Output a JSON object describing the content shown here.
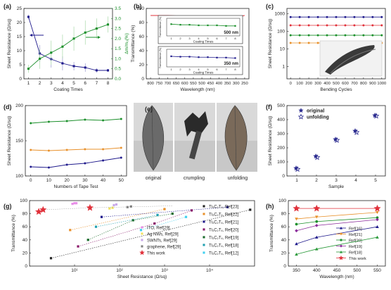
{
  "panels": {
    "a": "(a)",
    "b": "(b)",
    "c": "(c)",
    "d": "(d)",
    "e": "(e)",
    "f": "(f)",
    "g": "(g)",
    "h": "(h)"
  },
  "photo_e": {
    "labels": [
      "original",
      "crumpling",
      "unfolding"
    ]
  },
  "chart_data": [
    {
      "panel": "a",
      "type": "line",
      "xlabel": "Coating Times",
      "ylabel": "Sheet Resistance (Ω/sq)",
      "y2label": "Δm/m₀(%)",
      "x": [
        1,
        2,
        3,
        4,
        5,
        6,
        7,
        8
      ],
      "xticks": [
        "1",
        "2",
        "3",
        "4",
        "5",
        "6",
        "7",
        "8"
      ],
      "yticks": [
        "0",
        "5",
        "10",
        "15",
        "20",
        "25"
      ],
      "y2ticks": [
        "0.0",
        "0.5",
        "1.0",
        "1.5",
        "2.0",
        "2.5",
        "3.0",
        "3.5"
      ],
      "ylim": [
        0,
        25
      ],
      "y2lim": [
        0,
        3.5
      ],
      "series": [
        {
          "axis": "left",
          "color": "#1f1a8c",
          "marker": "square",
          "values": [
            22,
            9,
            7,
            5.5,
            4.5,
            4,
            3,
            3
          ],
          "errors": [
            0.8,
            3,
            3,
            2.5,
            1.5,
            1.5,
            0.8,
            0.5
          ]
        },
        {
          "axis": "right",
          "color": "#1a8f2a",
          "marker": "square",
          "values": [
            0.5,
            1.0,
            1.3,
            1.6,
            2.0,
            2.3,
            2.5,
            2.7
          ],
          "errors": [
            0.2,
            0.5,
            0.6,
            0.6,
            0.6,
            0.6,
            0.5,
            0.4
          ]
        }
      ]
    },
    {
      "panel": "b",
      "type": "line",
      "xlabel": "Wavelength (nm)",
      "ylabel": "Transmittance (%)",
      "xticks": [
        "800",
        "750",
        "700",
        "650",
        "600",
        "550",
        "500",
        "450",
        "400",
        "350",
        "300",
        "250"
      ],
      "yticks": [
        "0",
        "20",
        "40",
        "60",
        "80",
        "100"
      ],
      "ylim": [
        0,
        100
      ],
      "series": [
        {
          "color": "#e0303a",
          "values": [
            90,
            90,
            90,
            89.5,
            89.5,
            89,
            89,
            89,
            89,
            88.5,
            88,
            90
          ]
        }
      ],
      "insets": [
        {
          "label": "500 nm",
          "xlabel": "Coating Times",
          "ylabel": "Transmittance (%)",
          "x": [
            1,
            2,
            3,
            4,
            5,
            6,
            7,
            8
          ],
          "color": "#1a8f2a",
          "values": [
            90,
            89,
            89,
            88,
            88,
            88,
            87,
            87
          ],
          "ylim": [
            70,
            100
          ],
          "xticks": [
            "1",
            "2",
            "3",
            "4",
            "5",
            "6",
            "7",
            "8"
          ]
        },
        {
          "label": "350 nm",
          "xlabel": "Coating Times",
          "ylabel": "Transmittance (%)",
          "x": [
            1,
            2,
            3,
            4,
            5,
            6,
            7,
            8
          ],
          "color": "#1f1a8c",
          "values": [
            84,
            83,
            83,
            82,
            82,
            81,
            81,
            80
          ],
          "ylim": [
            60,
            100
          ],
          "xticks": [
            "1",
            "2",
            "3",
            "4",
            "5",
            "6",
            "7",
            "8"
          ]
        }
      ]
    },
    {
      "panel": "c",
      "type": "line",
      "xlabel": "Bending Cycles",
      "ylabel": "Sheet Resistance (Ω/sq)",
      "yscale": "log",
      "ylim": [
        0.2,
        2000
      ],
      "xlim": [
        0,
        1000
      ],
      "xticks": [
        "0",
        "100",
        "200",
        "300",
        "400",
        "500",
        "600",
        "700",
        "800",
        "900",
        "1000"
      ],
      "yticks": [
        "1",
        "10",
        "100",
        "1000"
      ],
      "x": [
        0,
        100,
        200,
        300,
        400,
        500,
        600,
        700,
        800,
        900,
        1000
      ],
      "series": [
        {
          "color": "#1f1a8c",
          "values": [
            650,
            650,
            650,
            650,
            650,
            650,
            650,
            650,
            650,
            650,
            650
          ]
        },
        {
          "color": "#e0303a",
          "values": [
            220,
            220,
            220,
            220,
            220,
            220,
            220,
            220,
            220,
            220,
            220
          ]
        },
        {
          "color": "#1a8f2a",
          "values": [
            60,
            60,
            60,
            60,
            60,
            60,
            60,
            60,
            60,
            60,
            60
          ]
        },
        {
          "color": "#e8902a",
          "values": [
            22,
            22,
            22,
            22,
            22,
            22,
            22,
            22,
            22,
            22,
            22
          ]
        }
      ]
    },
    {
      "panel": "d",
      "type": "line",
      "xlabel": "Numbers of Tape Test",
      "ylabel": "Sheet Resistance (Ω/sq)",
      "xlim": [
        0,
        50
      ],
      "ylim": [
        100,
        200
      ],
      "xticks": [
        "0",
        "10",
        "20",
        "30",
        "40",
        "50"
      ],
      "yticks": [
        "100",
        "150",
        "200"
      ],
      "x": [
        0,
        10,
        20,
        30,
        40,
        50
      ],
      "series": [
        {
          "color": "#1a8f2a",
          "values": [
            175,
            177,
            178,
            180,
            179,
            181
          ]
        },
        {
          "color": "#e8902a",
          "values": [
            137,
            136,
            137,
            138,
            138,
            140
          ]
        },
        {
          "color": "#1f1a8c",
          "values": [
            113,
            112,
            116,
            118,
            122,
            126
          ]
        }
      ]
    },
    {
      "panel": "f",
      "type": "scatter",
      "xlabel": "Sample",
      "ylabel": "Sheet Resistance (Ω/sq)",
      "xlim": [
        0.5,
        5.5
      ],
      "ylim": [
        0,
        500
      ],
      "xticks": [
        "1",
        "2",
        "3",
        "4",
        "5"
      ],
      "yticks": [
        "0",
        "100",
        "200",
        "300",
        "400",
        "500"
      ],
      "x": [
        1,
        2,
        3,
        4,
        5
      ],
      "legend": "top-left",
      "series": [
        {
          "name": "original",
          "color": "#2a2a8f",
          "marker": "star-filled",
          "values": [
            55,
            140,
            260,
            320,
            430
          ]
        },
        {
          "name": "unfolding",
          "color": "#2a2a8f",
          "marker": "star-open",
          "values": [
            48,
            132,
            254,
            310,
            426
          ]
        }
      ]
    },
    {
      "panel": "g",
      "type": "scatter",
      "xlabel": "Sheet Resistance (Ω/sq)",
      "ylabel": "Transmittance (%)",
      "xscale": "log",
      "xlim": [
        1,
        100000
      ],
      "ylim": [
        0,
        100
      ],
      "xticks": [
        "10¹",
        "10²",
        "10³",
        "10⁴"
      ],
      "yticks": [
        "0",
        "20",
        "40",
        "60",
        "80",
        "100"
      ],
      "legend": "right",
      "series": [
        {
          "name": "ITO, Ref[29]",
          "color": "#e890e8",
          "marker": "square",
          "points": [
            [
              9,
              95
            ],
            [
              10,
              96
            ],
            [
              11,
              96
            ]
          ]
        },
        {
          "name": "Ag NWs, Ref[29]",
          "color": "#f0e060",
          "marker": "square",
          "points": [
            [
              60,
              88
            ],
            [
              70,
              89
            ]
          ]
        },
        {
          "name": "SWNTs, Ref[29]",
          "color": "#c8a8e8",
          "marker": "square",
          "points": [
            [
              75,
              93
            ],
            [
              85,
              94
            ]
          ]
        },
        {
          "name": "graphene, Ref[29]",
          "color": "#808080",
          "marker": "square",
          "points": [
            [
              150,
              90
            ],
            [
              180,
              91
            ]
          ]
        },
        {
          "name": "This work",
          "color": "#e0303a",
          "marker": "star",
          "points": [
            [
              1.6,
              83
            ],
            [
              2,
              86
            ],
            [
              22,
              89
            ]
          ]
        },
        {
          "name": "Ti₃C₂Tₓ, Ref[23]",
          "color": "#222222",
          "marker": "square",
          "points": [
            [
              3,
              12
            ],
            [
              80000,
              86
            ]
          ]
        },
        {
          "name": "Ti₃C₂Tₓ, Ref[22]",
          "color": "#e8902a",
          "marker": "square",
          "points": [
            [
              8,
              55
            ],
            [
              1000,
              87
            ]
          ]
        },
        {
          "name": "Ti₃C₂Tₓ, Ref[21]",
          "color": "#1f1a8c",
          "marker": "square",
          "points": [
            [
              40,
              75
            ],
            [
              25000,
              90
            ]
          ]
        },
        {
          "name": "Ti₃C₂Tₓ, Ref[20]",
          "color": "#8a1a6a",
          "marker": "square",
          "points": [
            [
              12,
              30
            ],
            [
              600,
              65
            ],
            [
              4000,
              85
            ]
          ]
        },
        {
          "name": "Ti₃C₂Tₓ, Ref[19]",
          "color": "#1a6a2a",
          "marker": "square",
          "points": [
            [
              20,
              40
            ],
            [
              200,
              70
            ],
            [
              1500,
              80
            ]
          ]
        },
        {
          "name": "Ti₃C₂Tₓ, Ref[18]",
          "color": "#20a0b0",
          "marker": "square",
          "points": [
            [
              30,
              60
            ],
            [
              700,
              78
            ]
          ]
        },
        {
          "name": "Ti₃C₂Tₓ, Ref[12]",
          "color": "#40d0f0",
          "marker": "square",
          "points": [
            [
              300,
              55
            ],
            [
              3000,
              75
            ]
          ]
        }
      ]
    },
    {
      "panel": "h",
      "type": "line",
      "xlabel": "Wavelength (nm)",
      "ylabel": "Transmittance (%)",
      "xlim": [
        330,
        570
      ],
      "ylim": [
        0,
        100
      ],
      "xticks": [
        "350",
        "400",
        "450",
        "500",
        "550"
      ],
      "yticks": [
        "0",
        "20",
        "40",
        "60",
        "80",
        "100"
      ],
      "x": [
        350,
        400,
        550
      ],
      "legend": "bottom-right",
      "series": [
        {
          "name": "Ref[16]",
          "color": "#1f1a8c",
          "marker": "triangle-up",
          "values": [
            34,
            44,
            60
          ]
        },
        {
          "name": "Ref[21]",
          "color": "#e8902a",
          "marker": "triangle-down",
          "values": [
            72,
            75,
            82
          ]
        },
        {
          "name": "Ref[20]",
          "color": "#1a8f2a",
          "marker": "circle",
          "values": [
            64,
            68,
            74
          ]
        },
        {
          "name": "Ref[19]",
          "color": "#8a2a9a",
          "marker": "diamond",
          "values": [
            54,
            62,
            71
          ]
        },
        {
          "name": "Ref[18]",
          "color": "#2a9a3a",
          "marker": "triangle-up",
          "values": [
            18,
            26,
            44
          ]
        },
        {
          "name": "This work",
          "color": "#e0303a",
          "marker": "star",
          "values": [
            88,
            88,
            88
          ]
        }
      ]
    }
  ]
}
